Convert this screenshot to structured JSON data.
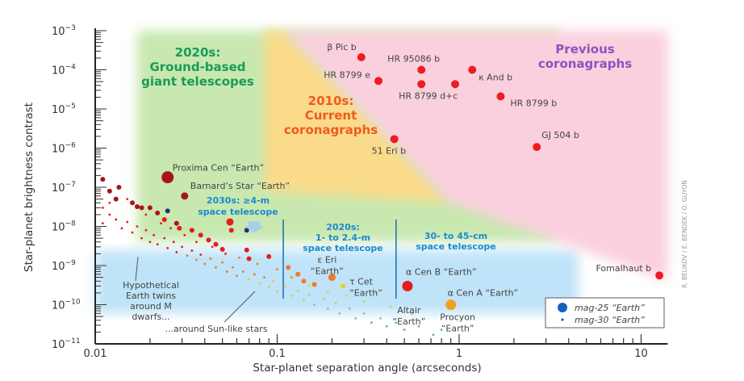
{
  "chart_data": {
    "type": "scatter",
    "xlabel": "Star-planet separation angle (arcseconds)",
    "ylabel": "Star-planet brightness contrast",
    "xscale": "log",
    "yscale": "log",
    "xlim": [
      0.01,
      14
    ],
    "ylim": [
      1e-11,
      0.001
    ],
    "x_ticks": [
      {
        "value": 0.01,
        "label": "0.01"
      },
      {
        "value": 0.1,
        "label": "0.1"
      },
      {
        "value": 1,
        "label": "1"
      },
      {
        "value": 10,
        "label": "10"
      }
    ],
    "y_ticks": [
      {
        "value": 0.001,
        "base": "10",
        "exp": "−3"
      },
      {
        "value": 0.0001,
        "base": "10",
        "exp": "−4"
      },
      {
        "value": 1e-05,
        "base": "10",
        "exp": "−5"
      },
      {
        "value": 1e-06,
        "base": "10",
        "exp": "−6"
      },
      {
        "value": 1e-07,
        "base": "10",
        "exp": "−7"
      },
      {
        "value": 1e-08,
        "base": "10",
        "exp": "−8"
      },
      {
        "value": 1e-09,
        "base": "10",
        "exp": "−9"
      },
      {
        "value": 1e-10,
        "base": "10",
        "exp": "−10"
      },
      {
        "value": 1e-11,
        "base": "10",
        "exp": "−11"
      }
    ],
    "colors": {
      "darkred": "#a8141c",
      "red": "#e81c1c",
      "orange": "#f27a22",
      "yellow": "#e6cf2a",
      "lime": "#b8d84a",
      "green": "#8cc87a",
      "teal": "#5cb8a8",
      "navy": "#23317a",
      "gold": "#f0a020"
    },
    "regions": [
      {
        "name": "ground-based",
        "label": [
          "2020s:",
          "Ground-based",
          "giant telescopes"
        ],
        "color": "#c8e8b0",
        "text_color": "#1a9a5a",
        "polygon": [
          [
            0.017,
            0.001
          ],
          [
            3.5,
            0.001
          ],
          [
            3.5,
            4e-09
          ],
          [
            0.017,
            4e-09
          ]
        ]
      },
      {
        "name": "space-blue",
        "color": "#bfe3f8",
        "polygon": [
          [
            0.01,
            2.5e-09
          ],
          [
            4.5,
            2.5e-09
          ],
          [
            4.5,
            6e-11
          ],
          [
            0.01,
            6e-11
          ]
        ]
      },
      {
        "name": "current-coronagraphs",
        "label": [
          "2010s:",
          "Current",
          "coronagraphs"
        ],
        "color": "#fadb8a",
        "text_color": "#f05a1e",
        "polygon": [
          [
            0.085,
            0.001
          ],
          [
            0.11,
            0.001
          ],
          [
            0.9,
            4e-08
          ],
          [
            0.085,
            8e-08
          ]
        ]
      },
      {
        "name": "previous-coronagraphs",
        "label": [
          "Previous",
          "coronagraphs"
        ],
        "color": "#fbd0de",
        "text_color": "#9050c0",
        "polygon": [
          [
            0.11,
            0.001
          ],
          [
            14,
            0.001
          ],
          [
            14,
            4e-10
          ],
          [
            0.9,
            4e-08
          ]
        ]
      }
    ],
    "instrument_labels": [
      {
        "lines": [
          "2030s: ≥4-m",
          "space telescope"
        ]
      },
      {
        "lines": [
          "2020s:",
          "1- to 2.4-m",
          "space telescope"
        ],
        "limit_x": 0.108
      },
      {
        "lines": [
          "30- to 45-cm",
          "space telescope"
        ],
        "limit_x": 0.45
      }
    ],
    "planets": [
      {
        "name": "β Pic b",
        "x": 0.29,
        "y": 0.00021
      },
      {
        "name": "HR 95086 b",
        "x": 0.62,
        "y": 0.0001
      },
      {
        "name": "HR 8799 e",
        "x": 0.36,
        "y": 5.2e-05
      },
      {
        "name": "κ And b",
        "x": 1.18,
        "y": 0.0001
      },
      {
        "name": "HR 8799 d+c",
        "x": 0.62,
        "y": 4.3e-05
      },
      {
        "name": "",
        "x": 0.95,
        "y": 4.3e-05
      },
      {
        "name": "HR 8799 b",
        "x": 1.69,
        "y": 2.1e-05
      },
      {
        "name": "GJ 504 b",
        "x": 2.67,
        "y": 1.07e-06
      },
      {
        "name": "51 Eri b",
        "x": 0.44,
        "y": 1.7e-06
      },
      {
        "name": "Fomalhaut b",
        "x": 12.6,
        "y": 5.6e-10
      }
    ],
    "named_earths": [
      {
        "name": "Proxima Cen “Earth”",
        "x": 0.025,
        "y": 1.8e-07,
        "color": "darkred",
        "size": "XL"
      },
      {
        "name": "Barnard’s Star “Earth”",
        "x": 0.031,
        "y": 6e-08,
        "color": "darkred",
        "size": "M"
      },
      {
        "name": "α Cen B “Earth”",
        "x": 0.52,
        "y": 3e-10,
        "color": "red",
        "size": "L"
      },
      {
        "name": "α Cen A “Earth”",
        "x": 0.9,
        "y": 1e-10,
        "color": "gold",
        "size": "L"
      },
      {
        "name_lines": [
          "ε Eri",
          "“Earth”"
        ],
        "x": 0.2,
        "y": 5e-10,
        "color": "orange",
        "size": "M"
      },
      {
        "name_lines": [
          "τ Cet",
          "“Earth”"
        ],
        "x": 0.23,
        "y": 3e-10,
        "color": "yellow",
        "size": "S"
      },
      {
        "name_lines": [
          "Altair",
          "“Earth”"
        ],
        "x": 0.72,
        "y": 1.7e-11,
        "color": "teal",
        "size": "XS"
      },
      {
        "name_lines": [
          "Procyon",
          "“Earth”"
        ],
        "x": 0.8,
        "y": 2.3e-11,
        "color": "teal",
        "size": "XS"
      }
    ],
    "annotations": {
      "m_dwarfs": [
        "Hypothetical",
        "Earth twins",
        "around M",
        "dwarfs..."
      ],
      "sun_like": "...around Sun-like stars"
    },
    "legend": {
      "position": "bottom-right",
      "entries": [
        {
          "label": "mag-25 “Earth”",
          "color": "#1560c0",
          "size": "L"
        },
        {
          "label": "mag-30 “Earth”",
          "color": "#1560c0",
          "size": "XS"
        }
      ]
    },
    "credit": "R. BELIKOV / E. BENDEK / O. GUYON",
    "population": [
      [
        0.011,
        1.6e-07,
        "darkred",
        "S"
      ],
      [
        0.012,
        8e-08,
        "darkred",
        "S"
      ],
      [
        0.0135,
        1e-07,
        "darkred",
        "S"
      ],
      [
        0.013,
        5e-08,
        "darkred",
        "S"
      ],
      [
        0.016,
        4e-08,
        "darkred",
        "S"
      ],
      [
        0.018,
        3e-08,
        "darkred",
        "S"
      ],
      [
        0.02,
        3e-08,
        "darkred",
        "S"
      ],
      [
        0.022,
        2.2e-08,
        "darkred",
        "S"
      ],
      [
        0.024,
        1.5e-08,
        "red",
        "S"
      ],
      [
        0.028,
        1.2e-08,
        "darkred",
        "S"
      ],
      [
        0.029,
        9e-09,
        "red",
        "S"
      ],
      [
        0.034,
        8e-09,
        "red",
        "S"
      ],
      [
        0.038,
        6e-09,
        "red",
        "S"
      ],
      [
        0.042,
        4.5e-09,
        "red",
        "S"
      ],
      [
        0.046,
        3.5e-09,
        "red",
        "S"
      ],
      [
        0.05,
        2.6e-09,
        "red",
        "S"
      ],
      [
        0.055,
        1.3e-08,
        "red",
        "M"
      ],
      [
        0.056,
        8e-09,
        "red",
        "S"
      ],
      [
        0.068,
        2.5e-09,
        "red",
        "S"
      ],
      [
        0.07,
        1.5e-09,
        "red",
        "S"
      ],
      [
        0.09,
        1.7e-09,
        "red",
        "S"
      ],
      [
        0.115,
        9e-10,
        "orange",
        "S"
      ],
      [
        0.13,
        6e-10,
        "orange",
        "S"
      ],
      [
        0.14,
        4e-10,
        "orange",
        "S"
      ],
      [
        0.16,
        3.3e-10,
        "orange",
        "S"
      ],
      [
        0.025,
        2.5e-08,
        "navy",
        "S"
      ],
      [
        0.068,
        8e-09,
        "navy",
        "S"
      ],
      [
        0.017,
        3.2e-08,
        "darkred",
        "S"
      ],
      [
        0.011,
        3e-08,
        "red",
        "XS"
      ],
      [
        0.012,
        2e-08,
        "red",
        "XS"
      ],
      [
        0.011,
        1.2e-08,
        "red",
        "XS"
      ],
      [
        0.013,
        1.5e-08,
        "red",
        "XS"
      ],
      [
        0.014,
        9e-09,
        "red",
        "XS"
      ],
      [
        0.015,
        1.3e-08,
        "red",
        "XS"
      ],
      [
        0.016,
        7e-09,
        "red",
        "XS"
      ],
      [
        0.017,
        1e-08,
        "red",
        "XS"
      ],
      [
        0.018,
        5e-09,
        "red",
        "XS"
      ],
      [
        0.019,
        8e-09,
        "red",
        "XS"
      ],
      [
        0.02,
        4e-09,
        "red",
        "XS"
      ],
      [
        0.021,
        6e-09,
        "red",
        "XS"
      ],
      [
        0.022,
        3.5e-09,
        "red",
        "XS"
      ],
      [
        0.024,
        5e-09,
        "red",
        "XS"
      ],
      [
        0.025,
        2.8e-09,
        "red",
        "XS"
      ],
      [
        0.027,
        4e-09,
        "red",
        "XS"
      ],
      [
        0.028,
        2.2e-09,
        "red",
        "XS"
      ],
      [
        0.03,
        3e-09,
        "red",
        "XS"
      ],
      [
        0.032,
        1.8e-09,
        "orange",
        "XS"
      ],
      [
        0.034,
        2.4e-09,
        "red",
        "XS"
      ],
      [
        0.036,
        1.4e-09,
        "orange",
        "XS"
      ],
      [
        0.038,
        1.9e-09,
        "red",
        "XS"
      ],
      [
        0.04,
        1.1e-09,
        "orange",
        "XS"
      ],
      [
        0.043,
        1.5e-09,
        "orange",
        "XS"
      ],
      [
        0.046,
        9e-10,
        "orange",
        "XS"
      ],
      [
        0.05,
        1.2e-09,
        "orange",
        "XS"
      ],
      [
        0.053,
        7e-10,
        "orange",
        "XS"
      ],
      [
        0.057,
        9e-10,
        "orange",
        "XS"
      ],
      [
        0.06,
        5.5e-10,
        "orange",
        "XS"
      ],
      [
        0.065,
        7e-10,
        "orange",
        "XS"
      ],
      [
        0.07,
        4.5e-10,
        "yellow",
        "XS"
      ],
      [
        0.075,
        6e-10,
        "orange",
        "XS"
      ],
      [
        0.08,
        3.5e-10,
        "yellow",
        "XS"
      ],
      [
        0.085,
        5e-10,
        "orange",
        "XS"
      ],
      [
        0.09,
        2.8e-10,
        "lime",
        "XS"
      ],
      [
        0.095,
        4e-10,
        "yellow",
        "XS"
      ],
      [
        0.1,
        2.2e-10,
        "lime",
        "XS"
      ],
      [
        0.11,
        3e-10,
        "yellow",
        "XS"
      ],
      [
        0.12,
        1.7e-10,
        "lime",
        "XS"
      ],
      [
        0.13,
        2.3e-10,
        "lime",
        "XS"
      ],
      [
        0.14,
        1.3e-10,
        "lime",
        "XS"
      ],
      [
        0.15,
        1.8e-10,
        "lime",
        "XS"
      ],
      [
        0.16,
        1e-10,
        "green",
        "XS"
      ],
      [
        0.18,
        1.4e-10,
        "lime",
        "XS"
      ],
      [
        0.19,
        8e-11,
        "green",
        "XS"
      ],
      [
        0.21,
        1.1e-10,
        "lime",
        "XS"
      ],
      [
        0.22,
        6e-11,
        "green",
        "XS"
      ],
      [
        0.25,
        8e-11,
        "green",
        "XS"
      ],
      [
        0.27,
        4.5e-11,
        "green",
        "XS"
      ],
      [
        0.3,
        6e-11,
        "green",
        "XS"
      ],
      [
        0.33,
        3.5e-11,
        "teal",
        "XS"
      ],
      [
        0.37,
        4.5e-11,
        "green",
        "XS"
      ],
      [
        0.4,
        2.8e-11,
        "teal",
        "XS"
      ],
      [
        0.45,
        3.5e-11,
        "teal",
        "XS"
      ],
      [
        0.5,
        2.3e-11,
        "teal",
        "XS"
      ],
      [
        0.6,
        2.8e-11,
        "teal",
        "XS"
      ],
      [
        0.012,
        4e-08,
        "red",
        "XS"
      ],
      [
        0.015,
        5e-08,
        "red",
        "XS"
      ],
      [
        0.019,
        2e-08,
        "red",
        "XS"
      ],
      [
        0.023,
        1.2e-08,
        "red",
        "XS"
      ],
      [
        0.026,
        9e-09,
        "red",
        "XS"
      ],
      [
        0.031,
        6e-09,
        "red",
        "XS"
      ],
      [
        0.036,
        4e-09,
        "red",
        "XS"
      ],
      [
        0.044,
        3e-09,
        "red",
        "XS"
      ],
      [
        0.052,
        2e-09,
        "red",
        "XS"
      ],
      [
        0.062,
        1.6e-09,
        "orange",
        "XS"
      ],
      [
        0.078,
        1.1e-09,
        "orange",
        "XS"
      ],
      [
        0.1,
        8e-10,
        "orange",
        "XS"
      ],
      [
        0.12,
        5e-10,
        "orange",
        "XS"
      ],
      [
        0.15,
        3e-10,
        "yellow",
        "XS"
      ],
      [
        0.19,
        2.2e-10,
        "yellow",
        "XS"
      ],
      [
        0.24,
        1.7e-10,
        "yellow",
        "XS"
      ],
      [
        0.3,
        1.2e-10,
        "lime",
        "XS"
      ],
      [
        0.35,
        2e-10,
        "yellow",
        "XS"
      ],
      [
        0.42,
        9e-11,
        "lime",
        "XS"
      ],
      [
        0.55,
        6e-11,
        "green",
        "XS"
      ]
    ]
  }
}
